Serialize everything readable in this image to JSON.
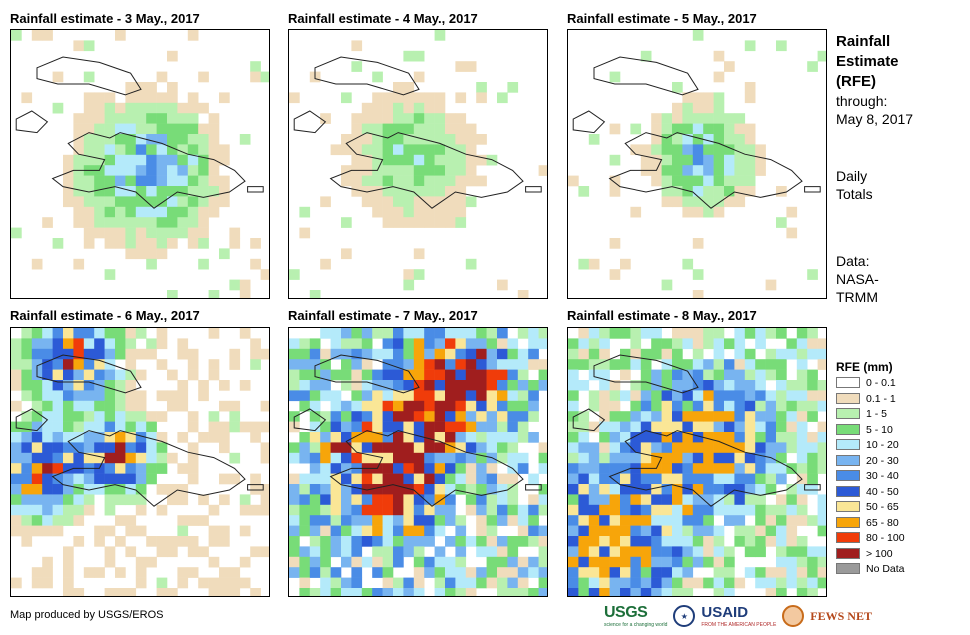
{
  "panels": [
    {
      "title": "Rainfall estimate - 3 May., 2017"
    },
    {
      "title": "Rainfall estimate - 4 May., 2017"
    },
    {
      "title": "Rainfall estimate - 5 May., 2017"
    },
    {
      "title": "Rainfall estimate - 6 May., 2017"
    },
    {
      "title": "Rainfall estimate - 7 May., 2017"
    },
    {
      "title": "Rainfall estimate - 8 May., 2017"
    }
  ],
  "side": {
    "title_lines": [
      "Rainfall",
      "Estimate",
      "(RFE)"
    ],
    "through_label": "through:",
    "through_date": "May 8, 2017",
    "totals_lines": [
      "Daily",
      "Totals"
    ],
    "data_label": "Data:",
    "data_source_lines": [
      "NASA-",
      "TRMM"
    ]
  },
  "legend": {
    "title": "RFE (mm)",
    "classes": [
      {
        "label": "0 - 0.1",
        "color": "#ffffff"
      },
      {
        "label": "0.1 - 1",
        "color": "#f0dcbc"
      },
      {
        "label": "1 - 5",
        "color": "#b8f0b0"
      },
      {
        "label": "5 - 10",
        "color": "#78dc78"
      },
      {
        "label": "10 - 20",
        "color": "#b4eafa"
      },
      {
        "label": "20 - 30",
        "color": "#78b4f0"
      },
      {
        "label": "30 - 40",
        "color": "#4a8ce6"
      },
      {
        "label": "40 - 50",
        "color": "#2c5ad6"
      },
      {
        "label": "50 - 65",
        "color": "#fae696"
      },
      {
        "label": "65 - 80",
        "color": "#f7a50a"
      },
      {
        "label": "80 - 100",
        "color": "#f03c0a"
      },
      {
        "label": "> 100",
        "color": "#a01e1e"
      },
      {
        "label": "No Data",
        "color": "#9a9a9a"
      }
    ]
  },
  "credit": "Map produced by USGS/EROS",
  "logos": {
    "usgs": "USGS",
    "usgs_tagline": "science for a changing world",
    "usaid": "USAID",
    "usaid_tagline": "FROM THE AMERICAN PEOPLE",
    "fews": "FEWS NET"
  }
}
